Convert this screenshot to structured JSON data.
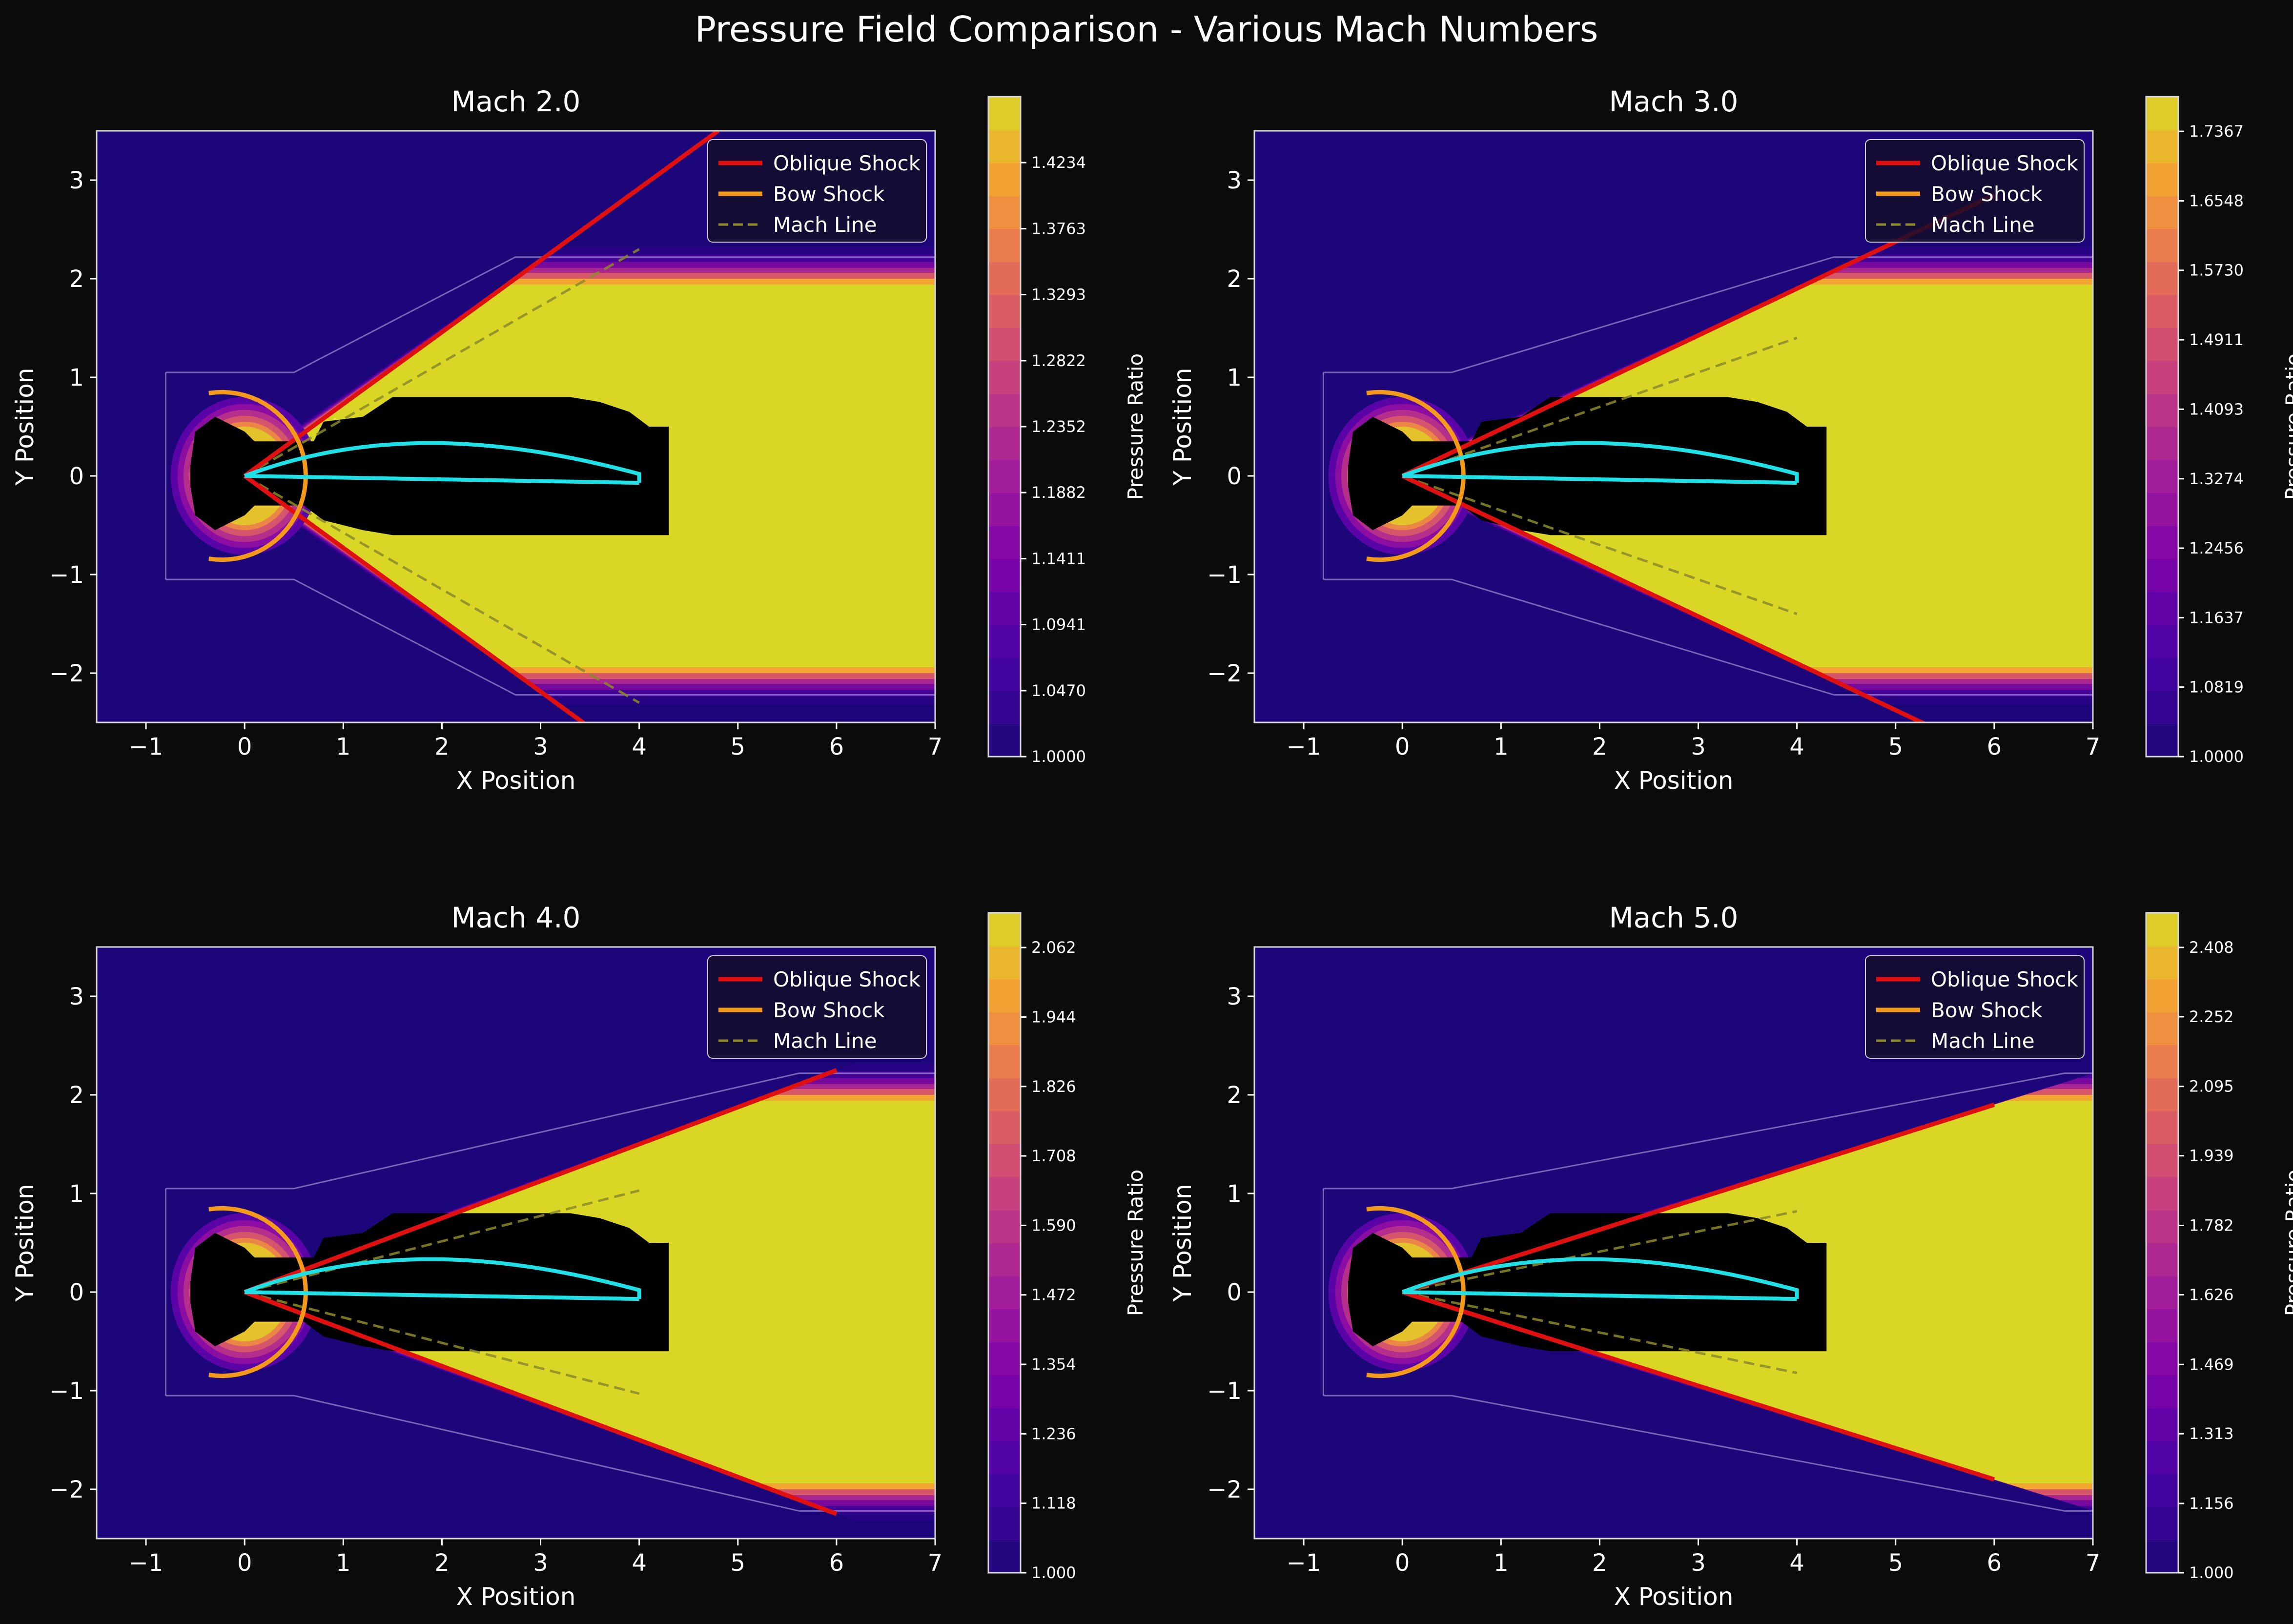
{
  "title": "Pressure Field Comparison - Various Mach Numbers",
  "colors": {
    "background": "#0b0b0b",
    "oblique_shock": "#e01010",
    "bow_shock": "#f39a1b",
    "mach_line": "#8c8a2a",
    "airfoil": "#1ee0e6",
    "low_pressure": "#1d0679",
    "high_pressure": "#dad626",
    "body": "#000000"
  },
  "chart_data": [
    {
      "type": "heatmap",
      "title": "Mach 2.0",
      "mach": 2.0,
      "xlabel": "X Position",
      "ylabel": "Y Position",
      "xlim": [
        -1.5,
        7
      ],
      "ylim": [
        -2.5,
        3.5
      ],
      "xticks": [
        -1,
        0,
        1,
        2,
        3,
        4,
        5,
        6,
        7
      ],
      "yticks": [
        -2,
        -1,
        0,
        1,
        2,
        3
      ],
      "colorbar": {
        "label": "Pressure Ratio",
        "min": 1.0,
        "max": 1.4704,
        "ticks": [
          "1.0000",
          "1.0470",
          "1.0941",
          "1.1411",
          "1.1882",
          "1.2352",
          "1.2822",
          "1.3293",
          "1.3763",
          "1.4234"
        ]
      },
      "legend": {
        "position": "upper-right",
        "entries": [
          "Oblique Shock",
          "Bow Shock",
          "Mach Line"
        ]
      },
      "oblique_shock_angle_deg": 36,
      "oblique_shock_end": [
        4.8,
        3.5
      ],
      "mach_line_end": [
        4,
        2.3
      ],
      "region_end_x": 7,
      "airfoil": {
        "x": [
          0,
          1,
          2,
          3,
          4
        ],
        "upper": [
          0,
          0.28,
          0.35,
          0.25,
          0.02
        ],
        "lower": [
          0,
          -0.01,
          -0.03,
          -0.05,
          -0.07
        ]
      },
      "bow_shock_radius": 0.85
    },
    {
      "type": "heatmap",
      "title": "Mach 3.0",
      "mach": 3.0,
      "xlabel": "X Position",
      "ylabel": "Y Position",
      "xlim": [
        -1.5,
        7
      ],
      "ylim": [
        -2.5,
        3.5
      ],
      "xticks": [
        -1,
        0,
        1,
        2,
        3,
        4,
        5,
        6,
        7
      ],
      "yticks": [
        -2,
        -1,
        0,
        1,
        2,
        3
      ],
      "colorbar": {
        "label": "Pressure Ratio",
        "min": 1.0,
        "max": 1.7776,
        "ticks": [
          "1.0000",
          "1.0819",
          "1.1637",
          "1.2456",
          "1.3274",
          "1.4093",
          "1.4911",
          "1.5730",
          "1.6548",
          "1.7367"
        ]
      },
      "legend": {
        "position": "upper-right",
        "entries": [
          "Oblique Shock",
          "Bow Shock",
          "Mach Line"
        ]
      },
      "oblique_shock_angle_deg": 25,
      "oblique_shock_end": [
        6,
        2.85
      ],
      "mach_line_end": [
        4,
        1.4
      ],
      "region_end_x": 7,
      "airfoil": {
        "x": [
          0,
          1,
          2,
          3,
          4
        ],
        "upper": [
          0,
          0.28,
          0.35,
          0.25,
          0.02
        ],
        "lower": [
          0,
          -0.01,
          -0.03,
          -0.05,
          -0.07
        ]
      },
      "bow_shock_radius": 0.85
    },
    {
      "type": "heatmap",
      "title": "Mach 4.0",
      "mach": 4.0,
      "xlabel": "X Position",
      "ylabel": "Y Position",
      "xlim": [
        -1.5,
        7
      ],
      "ylim": [
        -2.5,
        3.5
      ],
      "xticks": [
        -1,
        0,
        1,
        2,
        3,
        4,
        5,
        6,
        7
      ],
      "yticks": [
        -2,
        -1,
        0,
        1,
        2,
        3
      ],
      "colorbar": {
        "label": "Pressure Ratio",
        "min": 1.0,
        "max": 2.121,
        "ticks": [
          "1.000",
          "1.118",
          "1.236",
          "1.354",
          "1.472",
          "1.590",
          "1.708",
          "1.826",
          "1.944",
          "2.062"
        ]
      },
      "legend": {
        "position": "upper-right",
        "entries": [
          "Oblique Shock",
          "Bow Shock",
          "Mach Line"
        ]
      },
      "oblique_shock_angle_deg": 20.5,
      "oblique_shock_end": [
        6,
        2.25
      ],
      "mach_line_end": [
        4,
        1.03
      ],
      "region_end_x": 7,
      "airfoil": {
        "x": [
          0,
          1,
          2,
          3,
          4
        ],
        "upper": [
          0,
          0.28,
          0.35,
          0.25,
          0.02
        ],
        "lower": [
          0,
          -0.01,
          -0.03,
          -0.05,
          -0.07
        ]
      },
      "bow_shock_radius": 0.85
    },
    {
      "type": "heatmap",
      "title": "Mach 5.0",
      "mach": 5.0,
      "xlabel": "X Position",
      "ylabel": "Y Position",
      "xlim": [
        -1.5,
        7
      ],
      "ylim": [
        -2.5,
        3.5
      ],
      "xticks": [
        -1,
        0,
        1,
        2,
        3,
        4,
        5,
        6,
        7
      ],
      "yticks": [
        -2,
        -1,
        0,
        1,
        2,
        3
      ],
      "colorbar": {
        "label": "Pressure Ratio",
        "min": 1.0,
        "max": 2.486,
        "ticks": [
          "1.000",
          "1.156",
          "1.313",
          "1.469",
          "1.626",
          "1.782",
          "1.939",
          "2.095",
          "2.252",
          "2.408"
        ]
      },
      "legend": {
        "position": "upper-right",
        "entries": [
          "Oblique Shock",
          "Bow Shock",
          "Mach Line"
        ]
      },
      "oblique_shock_angle_deg": 17.5,
      "oblique_shock_end": [
        6,
        1.9
      ],
      "mach_line_end": [
        4,
        0.82
      ],
      "region_end_x": 7,
      "airfoil": {
        "x": [
          0,
          1,
          2,
          3,
          4
        ],
        "upper": [
          0,
          0.28,
          0.35,
          0.25,
          0.02
        ],
        "lower": [
          0,
          -0.01,
          -0.03,
          -0.05,
          -0.07
        ]
      },
      "bow_shock_radius": 0.85
    }
  ]
}
